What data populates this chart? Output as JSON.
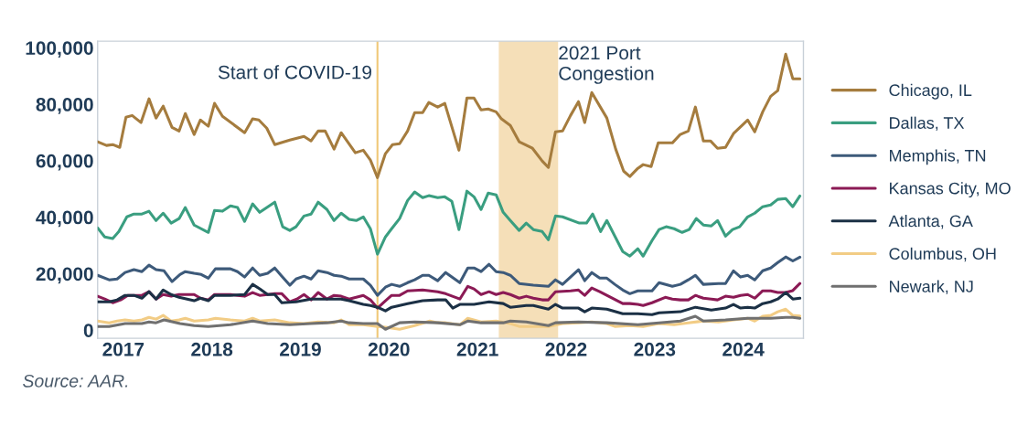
{
  "chart_data": {
    "type": "line",
    "xlim": [
      2016.71,
      2024.68
    ],
    "xticks": [
      2017,
      2018,
      2019,
      2020,
      2021,
      2022,
      2023,
      2024
    ],
    "ylim": [
      -2900,
      102300
    ],
    "yticks": [
      {
        "value": 0,
        "label": "0"
      },
      {
        "value": 20000,
        "label": "20,000"
      },
      {
        "value": 40000,
        "label": "40,000"
      },
      {
        "value": 60000,
        "label": "60,000"
      },
      {
        "value": 80000,
        "label": "80,000"
      },
      {
        "value": 100000,
        "label": "100,000"
      }
    ],
    "grid": false,
    "legend": "right",
    "ref_lines": [
      {
        "axis": "x",
        "value": 2019.87,
        "label": "Start of COVID-19",
        "color": "#f0c878"
      }
    ],
    "bands": [
      {
        "axis": "x",
        "from": 2021.24,
        "to": 2021.91,
        "label": "2021 Port\nCongestion",
        "color": "#f5dfb8"
      }
    ],
    "annotations": [
      "Source: AAR."
    ],
    "series": [
      {
        "name": "Chicago, IL",
        "color": "#a57c3e",
        "x": [
          2016.71,
          2016.81,
          2016.88,
          2016.96,
          2017.03,
          2017.1,
          2017.2,
          2017.29,
          2017.37,
          2017.45,
          2017.55,
          2017.63,
          2017.7,
          2017.8,
          2017.87,
          2017.96,
          2018.03,
          2018.12,
          2018.37,
          2018.46,
          2018.53,
          2018.62,
          2018.71,
          2018.88,
          2019.04,
          2019.12,
          2019.2,
          2019.28,
          2019.38,
          2019.46,
          2019.62,
          2019.71,
          2019.79,
          2019.87,
          2019.96,
          2020.04,
          2020.12,
          2020.21,
          2020.29,
          2020.38,
          2020.45,
          2020.55,
          2020.63,
          2020.79,
          2020.88,
          2020.96,
          2021.04,
          2021.12,
          2021.21,
          2021.27,
          2021.37,
          2021.47,
          2021.62,
          2021.73,
          2021.8,
          2021.88,
          2021.96,
          2022.05,
          2022.14,
          2022.21,
          2022.29,
          2022.46,
          2022.56,
          2022.65,
          2022.72,
          2022.81,
          2022.87,
          2022.96,
          2023.04,
          2023.2,
          2023.29,
          2023.38,
          2023.46,
          2023.55,
          2023.63,
          2023.71,
          2023.8,
          2023.89,
          2024.05,
          2024.13,
          2024.22,
          2024.31,
          2024.39,
          2024.48,
          2024.56,
          2024.64
        ],
        "values": [
          66700,
          65400,
          65700,
          64700,
          75400,
          76000,
          73500,
          81900,
          75100,
          79300,
          71800,
          70500,
          76700,
          69300,
          74400,
          72200,
          80300,
          75700,
          69900,
          74800,
          74400,
          71500,
          65700,
          67300,
          68600,
          67000,
          70500,
          70500,
          64100,
          69900,
          62800,
          63700,
          60200,
          54000,
          62500,
          65700,
          66000,
          70500,
          77000,
          77000,
          80600,
          79000,
          80300,
          63700,
          82200,
          82200,
          78000,
          78300,
          77300,
          74800,
          72500,
          66700,
          64400,
          59900,
          57600,
          70200,
          70500,
          76000,
          80900,
          73500,
          84100,
          75100,
          64100,
          56300,
          54400,
          57300,
          58600,
          57900,
          66300,
          66300,
          69300,
          70500,
          79000,
          67000,
          67000,
          64400,
          64700,
          69600,
          74400,
          70200,
          77300,
          82800,
          84800,
          97700,
          89000,
          89000
        ]
      },
      {
        "name": "Dallas, TX",
        "color": "#3a9e80",
        "x": [
          2016.71,
          2016.79,
          2016.88,
          2016.95,
          2017.04,
          2017.12,
          2017.21,
          2017.29,
          2017.37,
          2017.45,
          2017.54,
          2017.63,
          2017.7,
          2017.8,
          2017.96,
          2018.03,
          2018.12,
          2018.21,
          2018.29,
          2018.37,
          2018.46,
          2018.54,
          2018.71,
          2018.8,
          2018.88,
          2018.95,
          2019.04,
          2019.12,
          2019.2,
          2019.3,
          2019.38,
          2019.46,
          2019.55,
          2019.63,
          2019.71,
          2019.79,
          2019.87,
          2019.96,
          2020.03,
          2020.12,
          2020.21,
          2020.29,
          2020.38,
          2020.45,
          2020.55,
          2020.63,
          2020.71,
          2020.79,
          2020.88,
          2020.96,
          2021.04,
          2021.12,
          2021.21,
          2021.29,
          2021.37,
          2021.47,
          2021.55,
          2021.63,
          2021.73,
          2021.8,
          2021.88,
          2021.96,
          2022.15,
          2022.23,
          2022.3,
          2022.39,
          2022.46,
          2022.64,
          2022.72,
          2022.81,
          2022.87,
          2022.97,
          2023.05,
          2023.13,
          2023.22,
          2023.31,
          2023.39,
          2023.47,
          2023.55,
          2023.64,
          2023.71,
          2023.8,
          2023.88,
          2023.96,
          2024.05,
          2024.13,
          2024.22,
          2024.31,
          2024.39,
          2024.48,
          2024.56,
          2024.64
        ],
        "values": [
          36200,
          33000,
          32400,
          34900,
          40100,
          41100,
          41100,
          42100,
          38800,
          41400,
          37900,
          39500,
          43400,
          37200,
          34600,
          42400,
          42100,
          44000,
          43400,
          38500,
          44700,
          41700,
          45300,
          36600,
          35300,
          36600,
          40400,
          41100,
          45300,
          42700,
          38800,
          41400,
          39200,
          38800,
          40100,
          35900,
          26900,
          33000,
          35900,
          39500,
          45900,
          48900,
          46900,
          47600,
          46900,
          47200,
          45600,
          35600,
          49200,
          47200,
          42700,
          48500,
          47900,
          41700,
          38800,
          35300,
          37900,
          35600,
          34900,
          32000,
          40400,
          40100,
          37900,
          37900,
          41100,
          34900,
          38800,
          27800,
          26200,
          28800,
          26200,
          31700,
          35600,
          36600,
          35900,
          34600,
          35600,
          39500,
          37200,
          36900,
          38800,
          33300,
          35600,
          36600,
          40100,
          41400,
          43700,
          44300,
          46300,
          46600,
          43700,
          47500
        ]
      },
      {
        "name": "Memphis, TN",
        "color": "#3d5a7a",
        "x": [
          2016.71,
          2016.84,
          2016.93,
          2017.02,
          2017.12,
          2017.21,
          2017.29,
          2017.37,
          2017.46,
          2017.55,
          2017.64,
          2017.7,
          2017.8,
          2017.88,
          2017.96,
          2018.04,
          2018.21,
          2018.29,
          2018.37,
          2018.46,
          2018.54,
          2018.63,
          2018.71,
          2018.79,
          2018.88,
          2018.95,
          2019.04,
          2019.12,
          2019.2,
          2019.3,
          2019.38,
          2019.46,
          2019.55,
          2019.71,
          2019.79,
          2019.87,
          2019.96,
          2020.03,
          2020.12,
          2020.21,
          2020.29,
          2020.38,
          2020.45,
          2020.55,
          2020.64,
          2020.8,
          2020.89,
          2020.96,
          2021.04,
          2021.13,
          2021.21,
          2021.29,
          2021.37,
          2021.47,
          2021.63,
          2021.8,
          2021.88,
          2021.96,
          2022.05,
          2022.14,
          2022.21,
          2022.29,
          2022.38,
          2022.46,
          2022.55,
          2022.64,
          2022.72,
          2022.81,
          2022.97,
          2023.05,
          2023.2,
          2023.29,
          2023.38,
          2023.46,
          2023.55,
          2023.72,
          2023.8,
          2023.89,
          2023.97,
          2024.05,
          2024.13,
          2024.22,
          2024.31,
          2024.39,
          2024.48,
          2024.56,
          2024.64
        ],
        "values": [
          19400,
          17800,
          18100,
          20400,
          21400,
          20700,
          23000,
          21400,
          21000,
          17200,
          19700,
          20700,
          20100,
          19700,
          18400,
          21700,
          21700,
          20700,
          18800,
          22000,
          19400,
          20100,
          22000,
          19100,
          15900,
          18100,
          19100,
          18100,
          21000,
          20400,
          19400,
          19100,
          18100,
          18100,
          15900,
          12300,
          15200,
          16200,
          15500,
          16800,
          17800,
          19400,
          19400,
          17500,
          20400,
          16800,
          22000,
          22000,
          20700,
          23300,
          20700,
          20400,
          19400,
          16500,
          15900,
          15500,
          17800,
          16200,
          18800,
          21400,
          17500,
          20400,
          18400,
          18400,
          16200,
          14200,
          12900,
          13900,
          13900,
          16800,
          15500,
          16200,
          17800,
          19400,
          16200,
          16500,
          16500,
          21000,
          18800,
          19400,
          17800,
          21000,
          22000,
          23900,
          25900,
          24500,
          25800
        ]
      },
      {
        "name": "Kansas City, MO",
        "color": "#8b1a55",
        "x": [
          2016.71,
          2016.79,
          2016.88,
          2016.97,
          2017.05,
          2017.21,
          2017.29,
          2017.37,
          2017.45,
          2017.54,
          2017.63,
          2017.8,
          2017.87,
          2017.96,
          2018.03,
          2018.21,
          2018.29,
          2018.37,
          2018.46,
          2018.54,
          2018.63,
          2018.71,
          2018.79,
          2018.88,
          2018.96,
          2019.04,
          2019.12,
          2019.2,
          2019.3,
          2019.38,
          2019.46,
          2019.55,
          2019.71,
          2019.79,
          2019.87,
          2019.96,
          2020.03,
          2020.12,
          2020.21,
          2020.38,
          2020.55,
          2020.64,
          2020.8,
          2020.89,
          2020.96,
          2021.04,
          2021.13,
          2021.21,
          2021.29,
          2021.37,
          2021.47,
          2021.55,
          2021.63,
          2021.73,
          2021.8,
          2021.88,
          2022.05,
          2022.14,
          2022.21,
          2022.29,
          2022.38,
          2022.46,
          2022.64,
          2022.72,
          2022.81,
          2022.87,
          2022.97,
          2023.12,
          2023.2,
          2023.29,
          2023.38,
          2023.46,
          2023.55,
          2023.64,
          2023.71,
          2023.8,
          2023.89,
          2023.97,
          2024.05,
          2024.13,
          2024.22,
          2024.31,
          2024.39,
          2024.48,
          2024.56,
          2024.64
        ],
        "values": [
          12000,
          11000,
          9700,
          10700,
          12300,
          12300,
          13600,
          11000,
          12600,
          12000,
          12600,
          12600,
          11300,
          10700,
          12600,
          12600,
          12300,
          12000,
          13300,
          12300,
          12600,
          12900,
          12900,
          10000,
          11000,
          12600,
          10700,
          13300,
          11000,
          12300,
          12000,
          11000,
          12300,
          10700,
          7800,
          10400,
          12300,
          12300,
          13900,
          14200,
          13600,
          12900,
          11000,
          15500,
          14600,
          12600,
          13600,
          12600,
          13300,
          12600,
          11300,
          12000,
          11300,
          10700,
          10700,
          13600,
          13900,
          14200,
          12300,
          14900,
          13600,
          12300,
          9400,
          9400,
          9100,
          8700,
          9700,
          11600,
          11000,
          10700,
          10700,
          12300,
          11300,
          11000,
          10700,
          12000,
          11600,
          12300,
          12600,
          11300,
          13900,
          13900,
          13300,
          13300,
          14000,
          16500
        ]
      },
      {
        "name": "Atlanta, GA",
        "color": "#1b3045",
        "x": [
          2016.71,
          2016.84,
          2016.93,
          2017.02,
          2017.12,
          2017.21,
          2017.29,
          2017.37,
          2017.45,
          2017.54,
          2017.63,
          2017.8,
          2017.87,
          2017.96,
          2018.03,
          2018.21,
          2018.37,
          2018.46,
          2018.54,
          2018.63,
          2018.71,
          2018.79,
          2018.95,
          2019.12,
          2019.3,
          2019.46,
          2019.55,
          2019.71,
          2019.79,
          2019.87,
          2019.96,
          2020.03,
          2020.21,
          2020.38,
          2020.55,
          2020.64,
          2020.72,
          2020.8,
          2020.96,
          2021.13,
          2021.29,
          2021.37,
          2021.55,
          2021.63,
          2021.8,
          2021.88,
          2021.96,
          2022.14,
          2022.21,
          2022.29,
          2022.46,
          2022.64,
          2022.81,
          2022.97,
          2023.05,
          2023.29,
          2023.46,
          2023.64,
          2023.8,
          2023.89,
          2023.97,
          2024.05,
          2024.13,
          2024.22,
          2024.31,
          2024.39,
          2024.48,
          2024.56,
          2024.64
        ],
        "values": [
          10000,
          10000,
          10700,
          12300,
          12300,
          11300,
          13600,
          11000,
          14200,
          12600,
          11600,
          10400,
          11300,
          10400,
          12300,
          12300,
          12600,
          16200,
          14600,
          12600,
          12600,
          9700,
          10000,
          11000,
          11000,
          11000,
          10400,
          9100,
          8700,
          8100,
          6800,
          8100,
          9400,
          10400,
          10700,
          10700,
          7800,
          9100,
          9100,
          10000,
          9400,
          8100,
          8700,
          8700,
          7400,
          9100,
          7800,
          7800,
          6500,
          7800,
          7400,
          5800,
          5800,
          5500,
          6100,
          6500,
          8100,
          7100,
          7800,
          9100,
          7800,
          8100,
          7800,
          9400,
          10000,
          11000,
          13300,
          11000,
          11300
        ]
      },
      {
        "name": "Columbus, OH",
        "color": "#f2cc85",
        "x": [
          2016.71,
          2016.84,
          2016.93,
          2017.02,
          2017.12,
          2017.21,
          2017.29,
          2017.37,
          2017.45,
          2017.54,
          2017.63,
          2017.7,
          2017.8,
          2017.96,
          2018.04,
          2018.21,
          2018.37,
          2018.46,
          2018.54,
          2018.71,
          2018.88,
          2019.04,
          2019.2,
          2019.38,
          2019.46,
          2019.55,
          2019.71,
          2019.87,
          2019.96,
          2020.12,
          2020.29,
          2020.46,
          2020.55,
          2020.64,
          2020.8,
          2020.89,
          2021.04,
          2021.21,
          2021.37,
          2021.47,
          2021.63,
          2021.8,
          2021.96,
          2022.14,
          2022.29,
          2022.46,
          2022.55,
          2022.72,
          2022.87,
          2023.05,
          2023.22,
          2023.38,
          2023.55,
          2023.72,
          2023.89,
          2024.05,
          2024.13,
          2024.22,
          2024.31,
          2024.39,
          2024.48,
          2024.56,
          2024.64
        ],
        "values": [
          3200,
          2600,
          3200,
          3600,
          3200,
          3600,
          4500,
          3900,
          5200,
          3200,
          3600,
          4200,
          3200,
          3600,
          4200,
          3600,
          3200,
          4200,
          3200,
          3600,
          2600,
          2300,
          2900,
          2600,
          3600,
          1900,
          1900,
          1300,
          1000,
          300,
          1600,
          3200,
          2600,
          2600,
          1900,
          4200,
          2900,
          3200,
          2300,
          1300,
          1300,
          1300,
          2300,
          2600,
          2900,
          2300,
          1300,
          1600,
          1300,
          2300,
          1900,
          2600,
          3200,
          2900,
          3600,
          4200,
          3200,
          4900,
          5200,
          6500,
          7400,
          5200,
          5000
        ]
      },
      {
        "name": "Newark, NJ",
        "color": "#707070",
        "x": [
          2016.71,
          2016.84,
          2017.02,
          2017.21,
          2017.29,
          2017.37,
          2017.46,
          2017.64,
          2017.8,
          2017.96,
          2018.21,
          2018.46,
          2018.63,
          2018.88,
          2019.12,
          2019.3,
          2019.46,
          2019.55,
          2019.71,
          2019.87,
          2019.96,
          2020.12,
          2020.29,
          2020.55,
          2020.8,
          2020.89,
          2021.04,
          2021.29,
          2021.37,
          2021.55,
          2021.8,
          2021.88,
          2022.14,
          2022.46,
          2022.81,
          2023.05,
          2023.29,
          2023.46,
          2023.55,
          2023.8,
          2024.05,
          2024.31,
          2024.48,
          2024.56,
          2024.64
        ],
        "values": [
          1300,
          1300,
          2300,
          2300,
          2900,
          2600,
          3600,
          2300,
          1600,
          1300,
          1900,
          3200,
          2300,
          1900,
          2300,
          2600,
          3200,
          2600,
          2300,
          2300,
          300,
          2600,
          2900,
          2600,
          1900,
          3200,
          2600,
          2600,
          3200,
          2900,
          1600,
          2600,
          2900,
          2600,
          1900,
          2600,
          3200,
          4900,
          3200,
          3600,
          4200,
          4200,
          4500,
          4500,
          4200
        ]
      }
    ]
  }
}
